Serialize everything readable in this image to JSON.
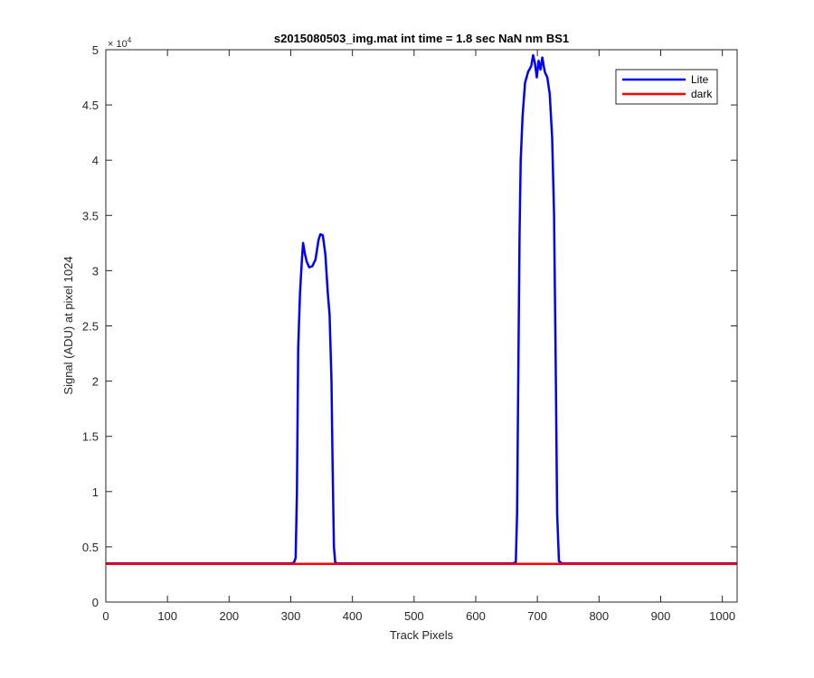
{
  "chart_data": {
    "type": "line",
    "title": "s2015080503_img.mat int time = 1.8 sec  NaN nm BS1",
    "xlabel": "Track Pixels",
    "ylabel": "Signal (ADU) at pixel 1024",
    "xlim": [
      0,
      1024
    ],
    "ylim": [
      0,
      50000
    ],
    "x_ticks": [
      0,
      100,
      200,
      300,
      400,
      500,
      600,
      700,
      800,
      900,
      1000
    ],
    "x_tick_labels": [
      "0",
      "100",
      "200",
      "300",
      "400",
      "500",
      "600",
      "700",
      "800",
      "900",
      "1000"
    ],
    "y_ticks": [
      0,
      5000,
      10000,
      15000,
      20000,
      25000,
      30000,
      35000,
      40000,
      45000,
      50000
    ],
    "y_tick_labels": [
      "0",
      "0.5",
      "1",
      "1.5",
      "2",
      "2.5",
      "3",
      "3.5",
      "4",
      "4.5",
      "5"
    ],
    "y_exponent_label": "× 10",
    "y_exponent_power": "4",
    "grid": false,
    "legend_location": "top-right",
    "series": [
      {
        "name": "Lite",
        "color": "#0000ff",
        "x": [
          0,
          300,
          305,
          308,
          310,
          312,
          315,
          318,
          320,
          323,
          326,
          330,
          335,
          340,
          345,
          348,
          352,
          356,
          360,
          363,
          366,
          368,
          370,
          372,
          375,
          380,
          500,
          600,
          660,
          665,
          667,
          669,
          671,
          673,
          676,
          680,
          685,
          690,
          693,
          696,
          699,
          702,
          705,
          708,
          712,
          716,
          720,
          724,
          727,
          730,
          732,
          735,
          740,
          850,
          1024
        ],
        "y": [
          3500,
          3500,
          3550,
          4000,
          10000,
          23000,
          28000,
          31000,
          32500,
          31500,
          30800,
          30300,
          30400,
          31000,
          32800,
          33300,
          33200,
          31500,
          28000,
          26000,
          20000,
          12000,
          5000,
          3600,
          3500,
          3500,
          3500,
          3500,
          3500,
          3600,
          8000,
          20000,
          33000,
          40000,
          44000,
          47000,
          48000,
          48500,
          49500,
          48800,
          47500,
          49000,
          48200,
          49300,
          48000,
          47500,
          46000,
          42000,
          35000,
          20000,
          8000,
          3700,
          3500,
          3500,
          3500
        ]
      },
      {
        "name": "dark",
        "color": "#ff0000",
        "x": [
          0,
          1024
        ],
        "y": [
          3450,
          3450
        ]
      }
    ]
  }
}
